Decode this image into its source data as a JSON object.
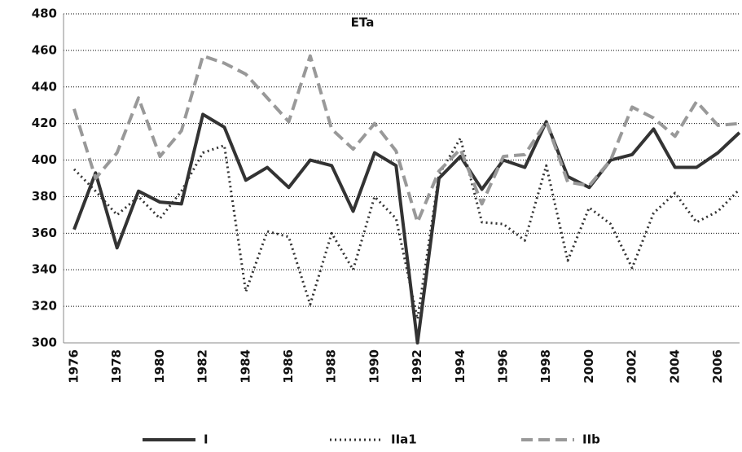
{
  "chart_data": {
    "type": "line",
    "title": "ETa",
    "categories": [
      "1976",
      null,
      "1978",
      null,
      "1980",
      null,
      "1982",
      null,
      "1984",
      null,
      "1986",
      null,
      "1988",
      null,
      "1990",
      null,
      "1992",
      null,
      "1994",
      null,
      "1996",
      null,
      "1998",
      null,
      "2000",
      null,
      "2002",
      null,
      "2004",
      null,
      "2006",
      null
    ],
    "series": [
      {
        "name": "I",
        "color": "#333333",
        "dash": "solid",
        "values": [
          362,
          393,
          352,
          383,
          377,
          376,
          425,
          418,
          389,
          396,
          385,
          400,
          397,
          372,
          404,
          397,
          300,
          390,
          402,
          384,
          400,
          396,
          421,
          391,
          385,
          400,
          403,
          417,
          396,
          396,
          404,
          415
        ]
      },
      {
        "name": "IIa1",
        "color": "#333333",
        "dash": "dotted",
        "values": [
          395,
          383,
          370,
          380,
          368,
          383,
          404,
          408,
          328,
          361,
          358,
          321,
          360,
          340,
          380,
          368,
          313,
          392,
          412,
          366,
          365,
          356,
          397,
          345,
          374,
          365,
          341,
          371,
          382,
          366,
          372,
          384
        ]
      },
      {
        "name": "IIb",
        "color": "#999999",
        "dash": "dashed",
        "values": [
          428,
          390,
          404,
          434,
          402,
          416,
          457,
          453,
          447,
          434,
          421,
          457,
          417,
          406,
          420,
          405,
          366,
          394,
          406,
          376,
          402,
          403,
          421,
          388,
          386,
          400,
          429,
          423,
          413,
          432,
          419,
          420
        ]
      }
    ],
    "ylim": [
      300,
      480
    ],
    "yticks": [
      300,
      320,
      340,
      360,
      380,
      400,
      420,
      440,
      460,
      480
    ],
    "grid": true,
    "legend": "bottom"
  }
}
